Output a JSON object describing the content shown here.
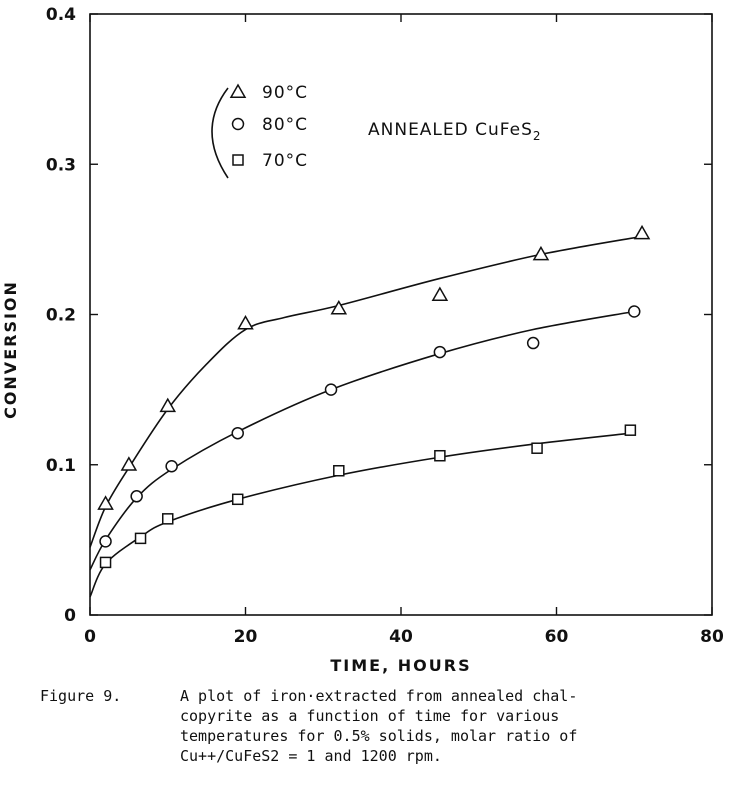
{
  "chart_data": {
    "type": "scatter",
    "title": "",
    "xlabel": "TIME, HOURS",
    "ylabel": "CONVERSION",
    "xlim": [
      0,
      80
    ],
    "ylim": [
      0,
      0.4
    ],
    "x_ticks": [
      "0",
      "20",
      "40",
      "60",
      "80"
    ],
    "y_ticks": [
      "0",
      "0.1",
      "0.2",
      "0.3",
      "0.4"
    ],
    "grid": false,
    "legend_position": "top-left",
    "legend_group_label": "ANNEALED CuFeS2",
    "series": [
      {
        "name": "90°C",
        "marker": "triangle",
        "points": [
          {
            "x": 2,
            "y": 0.074
          },
          {
            "x": 5,
            "y": 0.1
          },
          {
            "x": 10,
            "y": 0.139
          },
          {
            "x": 20,
            "y": 0.194
          },
          {
            "x": 32,
            "y": 0.204
          },
          {
            "x": 45,
            "y": 0.213
          },
          {
            "x": 58,
            "y": 0.24
          },
          {
            "x": 71,
            "y": 0.254
          }
        ],
        "curve": [
          [
            0,
            0.045
          ],
          [
            2,
            0.072
          ],
          [
            5,
            0.098
          ],
          [
            10,
            0.137
          ],
          [
            15,
            0.167
          ],
          [
            20,
            0.19
          ],
          [
            25,
            0.198
          ],
          [
            32,
            0.206
          ],
          [
            45,
            0.224
          ],
          [
            58,
            0.24
          ],
          [
            71,
            0.252
          ]
        ]
      },
      {
        "name": "80°C",
        "marker": "circle",
        "points": [
          {
            "x": 2,
            "y": 0.049
          },
          {
            "x": 6,
            "y": 0.079
          },
          {
            "x": 10.5,
            "y": 0.099
          },
          {
            "x": 19,
            "y": 0.121
          },
          {
            "x": 31,
            "y": 0.15
          },
          {
            "x": 45,
            "y": 0.175
          },
          {
            "x": 57,
            "y": 0.181
          },
          {
            "x": 70,
            "y": 0.202
          }
        ],
        "curve": [
          [
            0,
            0.03
          ],
          [
            2,
            0.05
          ],
          [
            6,
            0.078
          ],
          [
            10.5,
            0.097
          ],
          [
            19,
            0.122
          ],
          [
            31,
            0.15
          ],
          [
            45,
            0.174
          ],
          [
            57,
            0.19
          ],
          [
            70,
            0.202
          ]
        ]
      },
      {
        "name": "70°C",
        "marker": "square",
        "points": [
          {
            "x": 2,
            "y": 0.035
          },
          {
            "x": 6.5,
            "y": 0.051
          },
          {
            "x": 10,
            "y": 0.064
          },
          {
            "x": 19,
            "y": 0.077
          },
          {
            "x": 32,
            "y": 0.096
          },
          {
            "x": 45,
            "y": 0.106
          },
          {
            "x": 57.5,
            "y": 0.111
          },
          {
            "x": 69.5,
            "y": 0.123
          }
        ],
        "curve": [
          [
            0,
            0.012
          ],
          [
            2,
            0.034
          ],
          [
            6.5,
            0.052
          ],
          [
            10,
            0.062
          ],
          [
            19,
            0.077
          ],
          [
            32,
            0.093
          ],
          [
            45,
            0.105
          ],
          [
            57.5,
            0.114
          ],
          [
            69.5,
            0.121
          ]
        ]
      }
    ]
  },
  "caption": {
    "label": "Figure 9.",
    "lines": [
      "A plot of iron·extracted from annealed chal-",
      "copyrite as a function of time for various",
      "temperatures for 0.5% solids, molar ratio of",
      "Cu++/CuFeS2 = 1 and 1200 rpm."
    ]
  }
}
